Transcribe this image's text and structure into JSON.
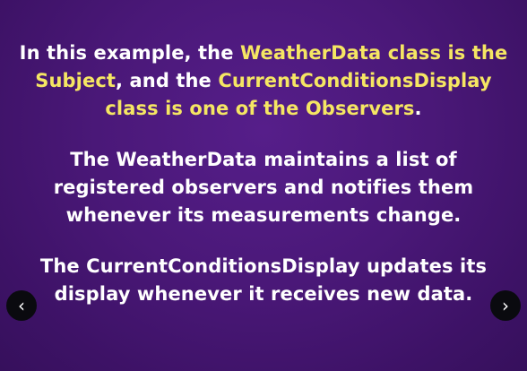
{
  "slide": {
    "para1": {
      "l1_a": "In this example, the ",
      "l1_b": "WeatherData class is the",
      "l2_a": "Subject",
      "l2_b": ", and the ",
      "l2_c": "CurrentConditionsDisplay",
      "l3_a": "class is one of the Observers",
      "l3_b": "."
    },
    "para2": {
      "l1": "The WeatherData maintains a list of",
      "l2": "registered observers and notifies them",
      "l3": "whenever its measurements change."
    },
    "para3": {
      "l1": "The CurrentConditionsDisplay updates its",
      "l2": "display whenever it receives new data."
    }
  },
  "nav": {
    "prev_icon": "‹",
    "next_icon": "›"
  },
  "colors": {
    "background": "#4a1878",
    "highlight": "#f5e663",
    "text": "#ffffff",
    "nav_button": "#0a0a0f"
  }
}
